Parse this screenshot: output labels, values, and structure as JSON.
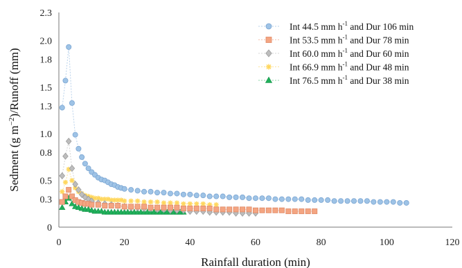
{
  "chart_data": {
    "type": "scatter",
    "title": "",
    "xlabel": "Rainfall duration (min)",
    "ylabel_parts": [
      "Sedment (g m",
      "−2",
      ")/Runoff (mm)"
    ],
    "xlim": [
      0,
      120
    ],
    "ylim": [
      0,
      2.3
    ],
    "xticks": [
      0,
      20,
      40,
      60,
      80,
      100,
      120
    ],
    "yticks": [
      0,
      0.3,
      0.5,
      0.8,
      1.0,
      1.3,
      1.5,
      1.8,
      2.0,
      2.3
    ],
    "ytick_labels": [
      "0",
      "0.3",
      "0.5",
      "0.8",
      "1.0",
      "1.3",
      "1.5",
      "1.8",
      "2.0",
      "2.3"
    ],
    "grid": false,
    "legend_position": "top-right",
    "series": [
      {
        "name": "Int 44.5 mm h-1 and Dur 106 min",
        "legend": {
          "pre": "Int 44.5 mm h",
          "sup": "-1",
          "post": " and Dur 106 min"
        },
        "marker": "circle",
        "fill": "#9ec3e6",
        "stroke": "#7aa5d2",
        "line": "#b7d0ea",
        "x": [
          1,
          2,
          3,
          4,
          5,
          6,
          7,
          8,
          9,
          10,
          11,
          12,
          13,
          14,
          15,
          16,
          17,
          18,
          19,
          20,
          22,
          24,
          26,
          28,
          30,
          32,
          34,
          36,
          38,
          40,
          42,
          44,
          46,
          48,
          50,
          52,
          54,
          56,
          58,
          60,
          62,
          64,
          66,
          68,
          70,
          72,
          74,
          76,
          78,
          80,
          82,
          84,
          86,
          88,
          90,
          92,
          94,
          96,
          98,
          100,
          102,
          104,
          106
        ],
        "y": [
          1.28,
          1.57,
          1.93,
          1.33,
          0.99,
          0.84,
          0.75,
          0.68,
          0.63,
          0.59,
          0.56,
          0.53,
          0.51,
          0.5,
          0.48,
          0.46,
          0.45,
          0.43,
          0.42,
          0.41,
          0.4,
          0.39,
          0.38,
          0.38,
          0.37,
          0.37,
          0.36,
          0.36,
          0.35,
          0.35,
          0.34,
          0.34,
          0.33,
          0.33,
          0.33,
          0.32,
          0.32,
          0.32,
          0.31,
          0.31,
          0.31,
          0.31,
          0.3,
          0.3,
          0.3,
          0.3,
          0.3,
          0.29,
          0.29,
          0.29,
          0.29,
          0.28,
          0.28,
          0.28,
          0.28,
          0.28,
          0.28,
          0.27,
          0.27,
          0.27,
          0.27,
          0.26,
          0.26
        ]
      },
      {
        "name": "Int 53.5 mm h-1 and Dur 78 min",
        "legend": {
          "pre": "Int 53.5 mm h",
          "sup": "-1",
          "post": " and Dur 78 min"
        },
        "marker": "square",
        "fill": "#f4a582",
        "stroke": "#e08a66",
        "line": "#f6c2ad",
        "x": [
          1,
          2,
          3,
          4,
          5,
          6,
          7,
          8,
          9,
          10,
          12,
          14,
          16,
          18,
          20,
          22,
          24,
          26,
          28,
          30,
          32,
          34,
          36,
          38,
          40,
          42,
          44,
          46,
          48,
          50,
          52,
          54,
          56,
          58,
          60,
          62,
          64,
          66,
          68,
          70,
          72,
          74,
          76,
          78
        ],
        "y": [
          0.27,
          0.33,
          0.4,
          0.33,
          0.29,
          0.27,
          0.26,
          0.25,
          0.25,
          0.24,
          0.24,
          0.23,
          0.23,
          0.23,
          0.22,
          0.22,
          0.22,
          0.22,
          0.21,
          0.21,
          0.21,
          0.21,
          0.21,
          0.2,
          0.2,
          0.2,
          0.2,
          0.2,
          0.19,
          0.19,
          0.19,
          0.19,
          0.19,
          0.19,
          0.18,
          0.18,
          0.18,
          0.18,
          0.18,
          0.17,
          0.17,
          0.17,
          0.17,
          0.17
        ]
      },
      {
        "name": "Int 60.0 mm h-1 and Dur 60 min",
        "legend": {
          "pre": "Int 60.0 mm h",
          "sup": "-1",
          "post": " and Dur 60 min"
        },
        "marker": "diamond",
        "fill": "#bdbdbd",
        "stroke": "#9d9d9d",
        "line": "#d4d4d4",
        "x": [
          1,
          2,
          3,
          4,
          5,
          6,
          7,
          8,
          9,
          10,
          12,
          14,
          16,
          18,
          20,
          22,
          24,
          26,
          28,
          30,
          32,
          34,
          36,
          38,
          40,
          42,
          44,
          46,
          48,
          50,
          52,
          54,
          56,
          58,
          60
        ],
        "y": [
          0.55,
          0.76,
          0.92,
          0.63,
          0.46,
          0.4,
          0.35,
          0.32,
          0.3,
          0.28,
          0.26,
          0.25,
          0.24,
          0.23,
          0.22,
          0.21,
          0.21,
          0.2,
          0.2,
          0.19,
          0.19,
          0.18,
          0.18,
          0.18,
          0.17,
          0.17,
          0.17,
          0.16,
          0.16,
          0.16,
          0.16,
          0.15,
          0.15,
          0.15,
          0.15
        ]
      },
      {
        "name": "Int 66.9 mm h-1 and Dur 48 min",
        "legend": {
          "pre": "Int 66.9 mm h",
          "sup": "-1",
          "post": " and Dur 48 min"
        },
        "marker": "asterisk",
        "fill": "#ffd75e",
        "stroke": "#f2c12e",
        "line": "#fbe39e",
        "x": [
          1,
          2,
          3,
          4,
          5,
          6,
          7,
          8,
          9,
          10,
          11,
          12,
          13,
          14,
          15,
          16,
          17,
          18,
          19,
          20,
          22,
          24,
          26,
          28,
          30,
          32,
          34,
          36,
          38,
          40,
          42,
          44,
          46,
          48
        ],
        "y": [
          0.38,
          0.48,
          0.62,
          0.5,
          0.42,
          0.38,
          0.36,
          0.34,
          0.33,
          0.32,
          0.31,
          0.31,
          0.3,
          0.3,
          0.3,
          0.29,
          0.29,
          0.29,
          0.29,
          0.28,
          0.28,
          0.28,
          0.27,
          0.27,
          0.27,
          0.26,
          0.26,
          0.26,
          0.25,
          0.25,
          0.25,
          0.25,
          0.24,
          0.24
        ]
      },
      {
        "name": "Int 76.5 mm h-1 and Dur 38 min",
        "legend": {
          "pre": "Int 76.5 mm h",
          "sup": "-1",
          "post": " and Dur 38 min"
        },
        "marker": "triangle",
        "fill": "#1fb05a",
        "stroke": "#16934a",
        "line": "#8fd6a8",
        "x": [
          1,
          2,
          3,
          4,
          5,
          6,
          7,
          8,
          9,
          10,
          11,
          12,
          13,
          14,
          15,
          16,
          17,
          18,
          19,
          20,
          21,
          22,
          23,
          24,
          25,
          26,
          27,
          28,
          29,
          30,
          31,
          32,
          33,
          34,
          35,
          36,
          37,
          38
        ],
        "y": [
          0.21,
          0.27,
          0.31,
          0.25,
          0.22,
          0.21,
          0.2,
          0.19,
          0.19,
          0.18,
          0.17,
          0.17,
          0.17,
          0.16,
          0.16,
          0.16,
          0.16,
          0.16,
          0.16,
          0.16,
          0.16,
          0.16,
          0.16,
          0.16,
          0.16,
          0.16,
          0.16,
          0.16,
          0.16,
          0.16,
          0.16,
          0.16,
          0.16,
          0.16,
          0.16,
          0.16,
          0.16,
          0.16
        ]
      }
    ]
  }
}
